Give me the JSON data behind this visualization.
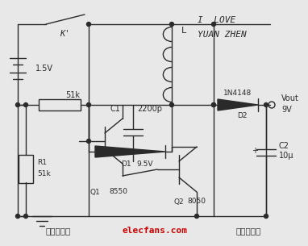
{
  "bg_color": "#e8e8e8",
  "line_color": "#2a2a2a",
  "text_color": "#2a2a2a",
  "red_text_color": "#cc0000",
  "title_text1": "I  LOVE",
  "title_text2": "YUAN ZHEN",
  "watermark1": "袁同沙制作",
  "watermark2": "elecfans.com",
  "watermark3": "电子发烧友",
  "label_K": "K'",
  "label_battery": "1.5V",
  "label_51k_top": "51k",
  "label_C1": "C1",
  "label_C1val": "2200p",
  "label_L": "L",
  "label_D1": "D1",
  "label_D1val": "9.5V",
  "label_D2": "D2",
  "label_1N4148": "1N4148",
  "label_Q1": "Q1",
  "label_Q1val": "8550",
  "label_Q2": "Q2",
  "label_Q2val": "8050",
  "label_R1": "R1",
  "label_R1val": "51k",
  "label_Vout": "Vout",
  "label_9V": "9V",
  "label_C2": "C2",
  "label_C2val": "10μ",
  "label_plus": "+"
}
